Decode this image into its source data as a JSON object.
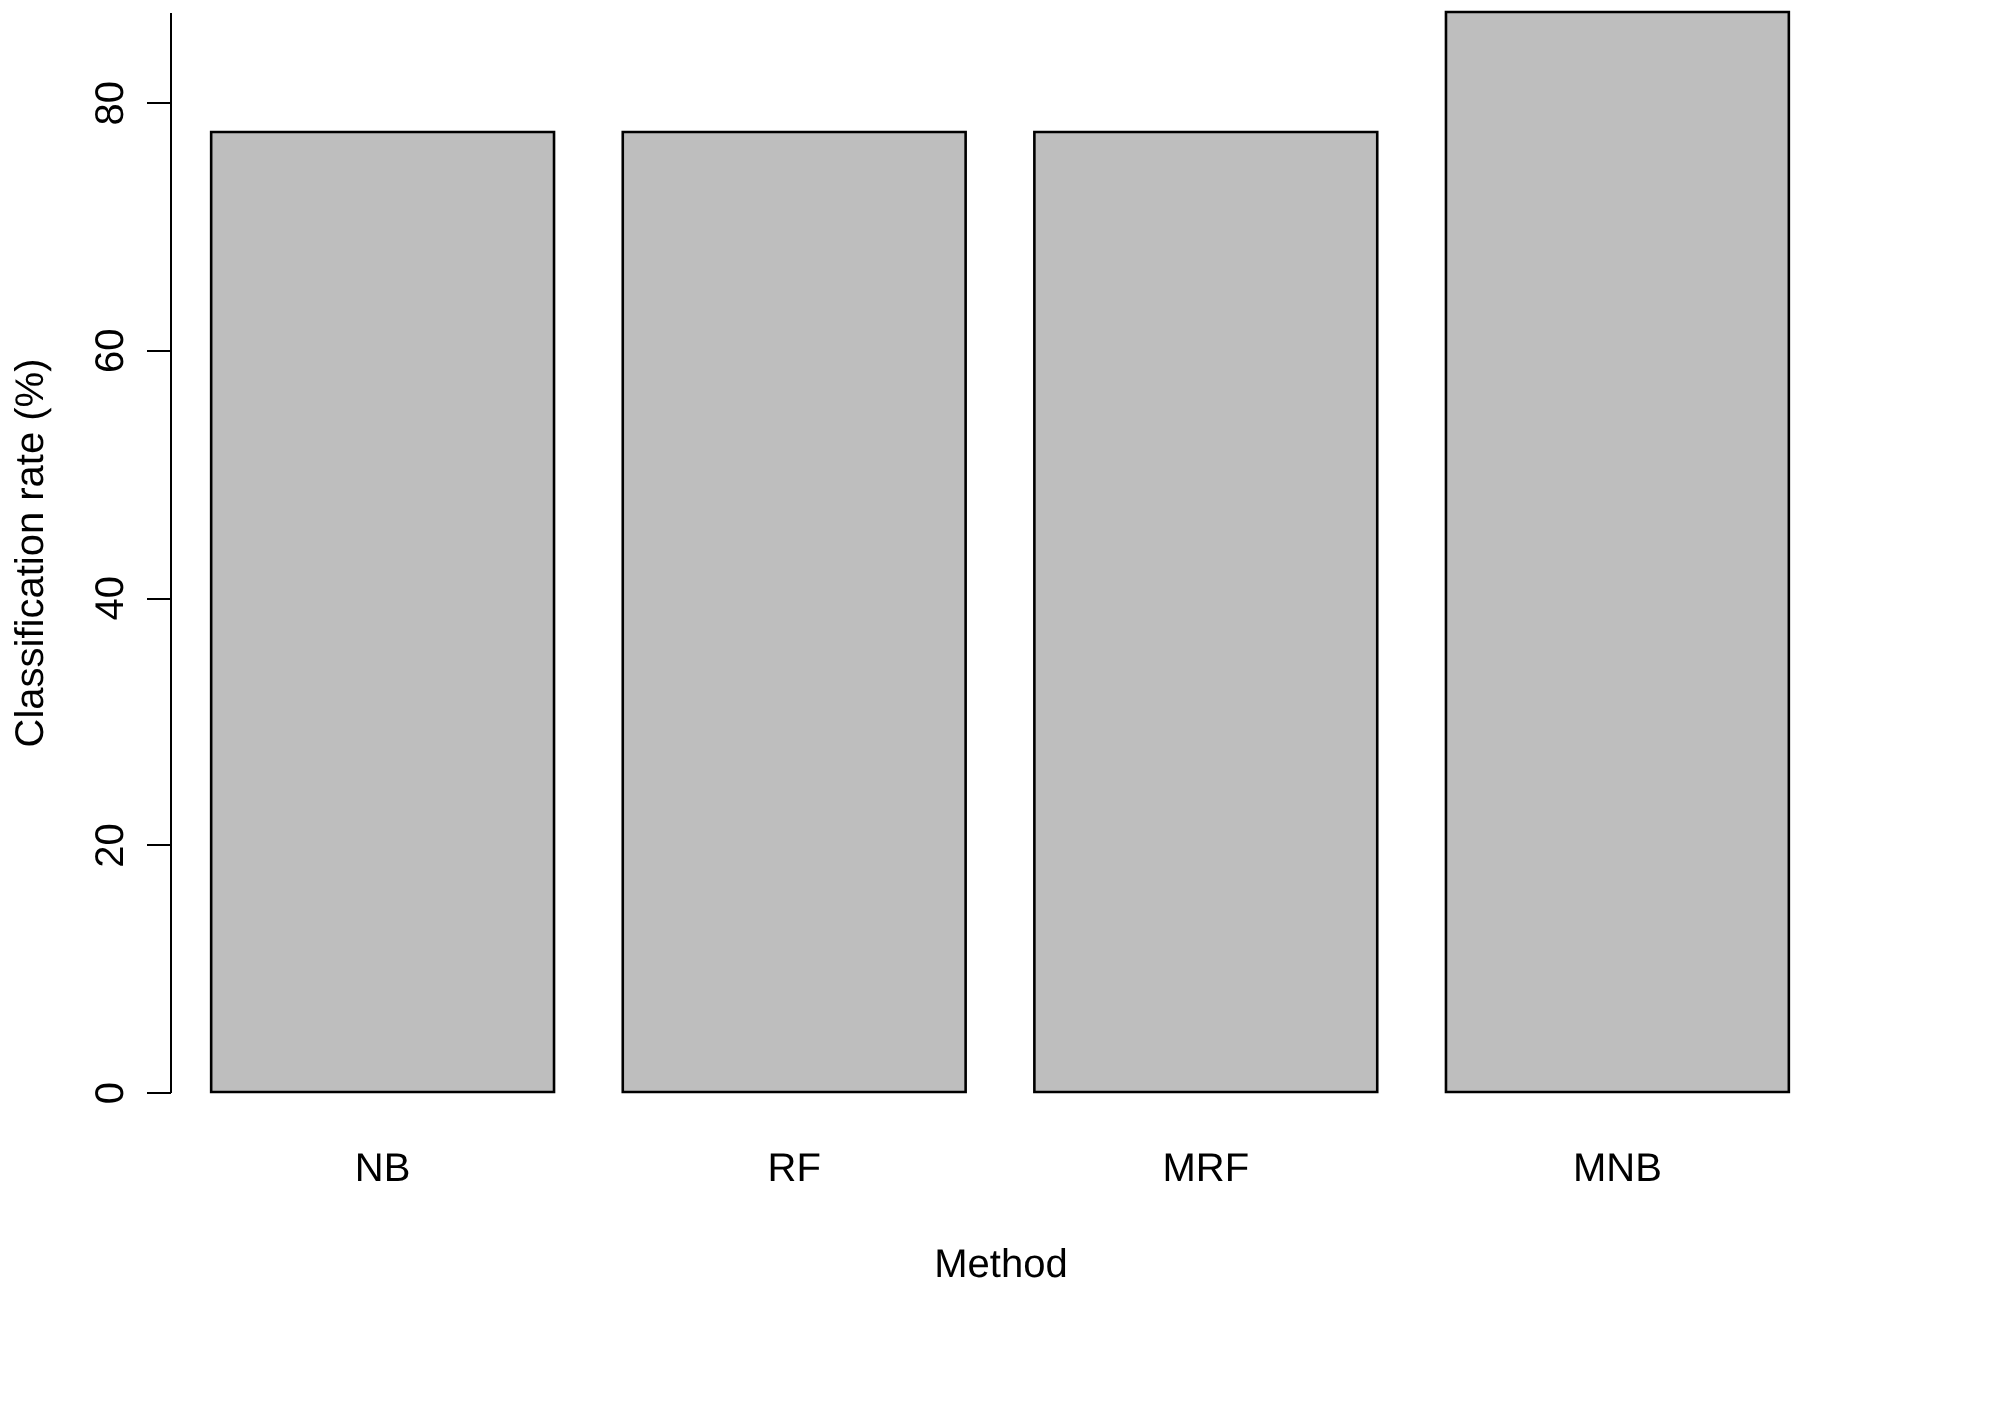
{
  "chart_data": {
    "type": "bar",
    "categories": [
      "NB",
      "RF",
      "MRF",
      "MNB"
    ],
    "values": [
      77.6,
      77.6,
      77.6,
      87.3
    ],
    "color": "#bebebe",
    "xlabel": "Method",
    "ylabel": "Classification rate (%)",
    "ylim": [
      0,
      87.3
    ],
    "yticks": [
      0,
      20,
      40,
      60,
      80
    ],
    "grid": false
  }
}
